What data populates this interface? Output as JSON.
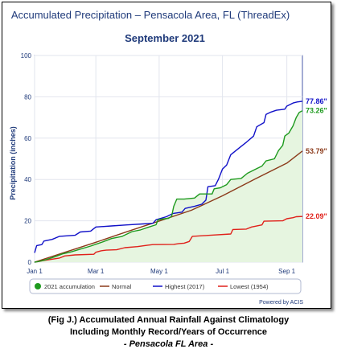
{
  "chart_data": {
    "type": "line",
    "title": "Accumulated Precipitation – Pensacola Area, FL (ThreadEx)",
    "subtitle": "September 2021",
    "ylabel": "Precipitation (inches)",
    "xlabel": "",
    "ylim": [
      0,
      100
    ],
    "yticks": [
      0,
      20,
      40,
      60,
      80,
      100
    ],
    "xlim": [
      1,
      259
    ],
    "x_unit": "day of year",
    "xticks": [
      {
        "label": "Jan 1",
        "day": 1
      },
      {
        "label": "Mar 1",
        "day": 60
      },
      {
        "label": "May 1",
        "day": 121
      },
      {
        "label": "Jul 1",
        "day": 182
      },
      {
        "label": "Sep 1",
        "day": 244
      }
    ],
    "grid": true,
    "legend_position": "bottom",
    "credit": "Powered by ACIS",
    "series": [
      {
        "name": "2021 accumulation",
        "color": "#1e9a1e",
        "fill": "#e6f5e0",
        "end_label": "73.26\"",
        "points": [
          [
            1,
            0.0
          ],
          [
            5,
            0.3
          ],
          [
            12,
            1.2
          ],
          [
            20,
            2.5
          ],
          [
            28,
            4.0
          ],
          [
            35,
            4.8
          ],
          [
            45,
            6.3
          ],
          [
            55,
            7.8
          ],
          [
            65,
            9.5
          ],
          [
            75,
            11.4
          ],
          [
            85,
            12.4
          ],
          [
            95,
            14.8
          ],
          [
            103,
            15.6
          ],
          [
            110,
            16.8
          ],
          [
            118,
            18.1
          ],
          [
            120,
            20.5
          ],
          [
            126,
            21.0
          ],
          [
            130,
            21.2
          ],
          [
            133,
            22.2
          ],
          [
            135,
            27.0
          ],
          [
            138,
            30.5
          ],
          [
            145,
            30.5
          ],
          [
            155,
            31.0
          ],
          [
            160,
            33.0
          ],
          [
            172,
            33.0
          ],
          [
            174,
            35.5
          ],
          [
            180,
            36.0
          ],
          [
            186,
            37.5
          ],
          [
            190,
            40.0
          ],
          [
            200,
            40.5
          ],
          [
            206,
            43.0
          ],
          [
            212,
            44.5
          ],
          [
            220,
            46.5
          ],
          [
            224,
            49.0
          ],
          [
            232,
            50.0
          ],
          [
            236,
            54.0
          ],
          [
            240,
            56.5
          ],
          [
            242,
            61.0
          ],
          [
            246,
            62.5
          ],
          [
            250,
            66.0
          ],
          [
            253,
            70.0
          ],
          [
            256,
            72.5
          ],
          [
            259,
            73.26
          ]
        ]
      },
      {
        "name": "Normal",
        "color": "#8b3a1a",
        "end_label": "53.79\"",
        "points": [
          [
            1,
            0.0
          ],
          [
            31,
            4.9
          ],
          [
            60,
            9.6
          ],
          [
            91,
            14.9
          ],
          [
            121,
            19.9
          ],
          [
            152,
            25.1
          ],
          [
            182,
            32.1
          ],
          [
            213,
            40.1
          ],
          [
            244,
            47.9
          ],
          [
            259,
            53.79
          ]
        ]
      },
      {
        "name": "Highest (2017)",
        "color": "#1010c8",
        "end_label": "77.86\"",
        "points": [
          [
            1,
            4.5
          ],
          [
            3,
            8.0
          ],
          [
            8,
            8.5
          ],
          [
            10,
            10.2
          ],
          [
            18,
            11.0
          ],
          [
            25,
            12.5
          ],
          [
            40,
            13.0
          ],
          [
            45,
            14.6
          ],
          [
            55,
            15.0
          ],
          [
            60,
            17.0
          ],
          [
            75,
            17.5
          ],
          [
            90,
            18.0
          ],
          [
            105,
            18.5
          ],
          [
            115,
            18.8
          ],
          [
            118,
            20.5
          ],
          [
            128,
            22.0
          ],
          [
            134,
            23.5
          ],
          [
            143,
            24.2
          ],
          [
            146,
            26.0
          ],
          [
            155,
            27.0
          ],
          [
            162,
            28.0
          ],
          [
            166,
            30.0
          ],
          [
            168,
            36.5
          ],
          [
            175,
            37.0
          ],
          [
            178,
            40.0
          ],
          [
            182,
            45.0
          ],
          [
            186,
            47.0
          ],
          [
            190,
            52.0
          ],
          [
            195,
            54.0
          ],
          [
            200,
            56.0
          ],
          [
            205,
            58.0
          ],
          [
            212,
            61.0
          ],
          [
            215,
            65.5
          ],
          [
            222,
            67.5
          ],
          [
            224,
            71.5
          ],
          [
            228,
            72.5
          ],
          [
            234,
            73.5
          ],
          [
            242,
            74.0
          ],
          [
            244,
            75.5
          ],
          [
            250,
            77.0
          ],
          [
            254,
            77.5
          ],
          [
            259,
            77.86
          ]
        ]
      },
      {
        "name": "Lowest (1954)",
        "color": "#e0201a",
        "end_label": "22.09\"",
        "points": [
          [
            1,
            0.0
          ],
          [
            10,
            0.8
          ],
          [
            25,
            2.0
          ],
          [
            30,
            3.0
          ],
          [
            40,
            3.5
          ],
          [
            58,
            3.8
          ],
          [
            60,
            4.8
          ],
          [
            65,
            5.5
          ],
          [
            70,
            5.8
          ],
          [
            80,
            6.0
          ],
          [
            88,
            7.0
          ],
          [
            100,
            7.5
          ],
          [
            110,
            8.2
          ],
          [
            115,
            8.5
          ],
          [
            135,
            8.6
          ],
          [
            140,
            9.0
          ],
          [
            145,
            9.2
          ],
          [
            150,
            10.0
          ],
          [
            153,
            12.5
          ],
          [
            170,
            13.0
          ],
          [
            190,
            13.6
          ],
          [
            192,
            15.8
          ],
          [
            205,
            16.0
          ],
          [
            210,
            17.0
          ],
          [
            220,
            18.0
          ],
          [
            222,
            19.8
          ],
          [
            240,
            20.0
          ],
          [
            244,
            21.0
          ],
          [
            250,
            21.5
          ],
          [
            253,
            22.0
          ],
          [
            259,
            22.09
          ]
        ]
      }
    ]
  },
  "caption": {
    "line1": "(Fig J.) Accumulated Annual Rainfall Against  Climatology",
    "line2": "Including Monthly Record/Years of Occurrence",
    "line3": "- Pensacola FL Area -"
  }
}
